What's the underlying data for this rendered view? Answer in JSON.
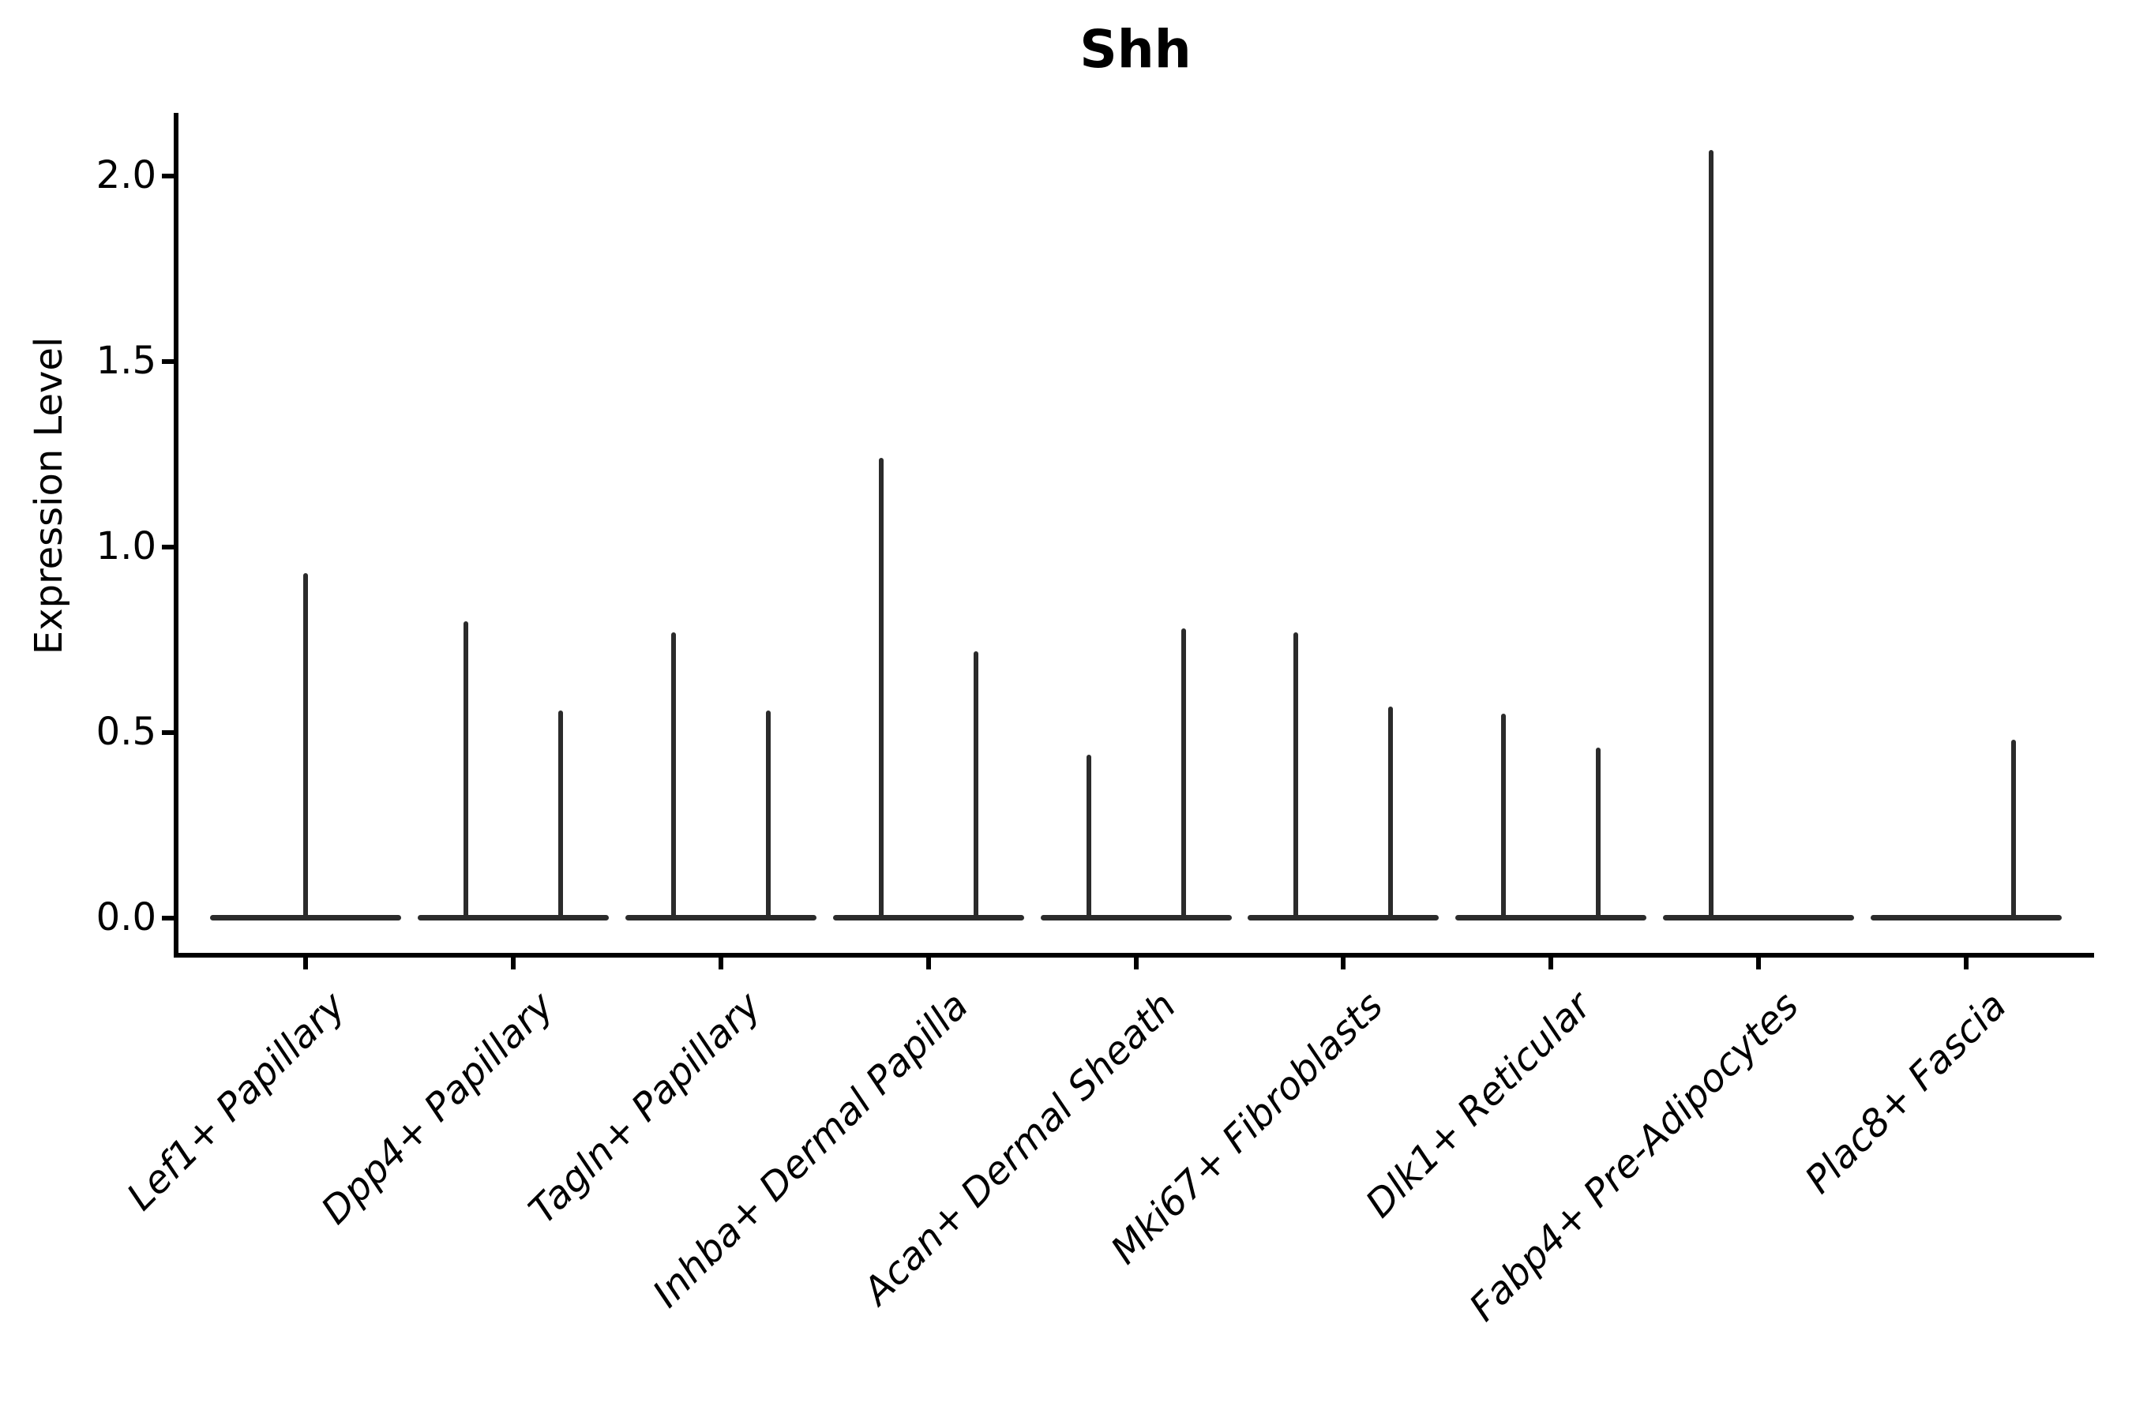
{
  "chart_data": {
    "type": "violin",
    "title": "Shh",
    "ylabel": "Expression Level",
    "xlabel": "",
    "legend": "none",
    "grid": false,
    "ylim": [
      -0.1,
      2.17
    ],
    "yticks": [
      {
        "label": "0.0",
        "value": 0.0
      },
      {
        "label": "0.5",
        "value": 0.5
      },
      {
        "label": "1.0",
        "value": 1.0
      },
      {
        "label": "1.5",
        "value": 1.5
      },
      {
        "label": "2.0",
        "value": 2.0
      }
    ],
    "categories": [
      "Lef1+ Papillary",
      "Dpp4+ Papillary",
      "Tagln+ Papillary",
      "Inhba+ Dermal Papilla",
      "Acan+ Dermal Sheath",
      "Mki67+ Fibroblasts",
      "Dlk1+ Reticular",
      "Fabp4+ Pre-Adipocytes",
      "Plac8+ Fascia"
    ],
    "violins": [
      {
        "category": "Lef1+ Papillary",
        "base_halfwidth_frac": 0.46,
        "spikes": [
          {
            "offset_frac": 0.0,
            "max": 0.93
          }
        ]
      },
      {
        "category": "Dpp4+ Papillary",
        "base_halfwidth_frac": 0.46,
        "spikes": [
          {
            "offset_frac": -0.23,
            "max": 0.8
          },
          {
            "offset_frac": 0.23,
            "max": 0.56
          }
        ]
      },
      {
        "category": "Tagln+ Papillary",
        "base_halfwidth_frac": 0.46,
        "spikes": [
          {
            "offset_frac": -0.23,
            "max": 0.77
          },
          {
            "offset_frac": 0.23,
            "max": 0.56
          }
        ]
      },
      {
        "category": "Inhba+ Dermal Papilla",
        "base_halfwidth_frac": 0.46,
        "spikes": [
          {
            "offset_frac": -0.23,
            "max": 1.24
          },
          {
            "offset_frac": 0.23,
            "max": 0.72
          }
        ]
      },
      {
        "category": "Acan+ Dermal Sheath",
        "base_halfwidth_frac": 0.46,
        "spikes": [
          {
            "offset_frac": -0.23,
            "max": 0.44
          },
          {
            "offset_frac": 0.23,
            "max": 0.78
          }
        ]
      },
      {
        "category": "Mki67+ Fibroblasts",
        "base_halfwidth_frac": 0.46,
        "spikes": [
          {
            "offset_frac": -0.23,
            "max": 0.77
          },
          {
            "offset_frac": 0.23,
            "max": 0.57
          }
        ]
      },
      {
        "category": "Dlk1+ Reticular",
        "base_halfwidth_frac": 0.46,
        "spikes": [
          {
            "offset_frac": -0.23,
            "max": 0.55
          },
          {
            "offset_frac": 0.23,
            "max": 0.46
          }
        ]
      },
      {
        "category": "Fabp4+ Pre-Adipocytes",
        "base_halfwidth_frac": 0.46,
        "spikes": [
          {
            "offset_frac": -0.23,
            "max": 2.07
          }
        ]
      },
      {
        "category": "Plac8+ Fascia",
        "base_halfwidth_frac": 0.46,
        "spikes": [
          {
            "offset_frac": 0.23,
            "max": 0.48
          }
        ]
      }
    ],
    "colors": {
      "violin": "#2b2b2b",
      "axis": "#000000",
      "text": "#000000",
      "background": "#ffffff"
    }
  }
}
